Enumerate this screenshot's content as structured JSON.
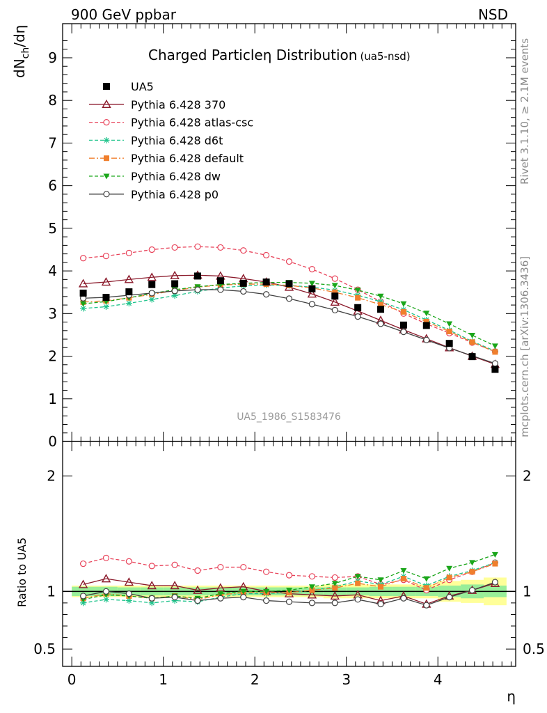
{
  "header": {
    "left": "900 GeV ppbar",
    "right": "NSD",
    "side_top": "Rivet 3.1.10, ≥ 2.1M events",
    "side_bottom": "mcplots.cern.ch [arXiv:1306.3436]"
  },
  "chart_data": [
    {
      "type": "line",
      "title_main": "Charged Particle",
      "title_symbol": "η",
      "title_main2": " Distribution",
      "title_sub": "(ua5-nsd)",
      "ylabel_main": "dN",
      "ylabel_sub": "ch",
      "ylabel_tail": "/dη",
      "watermark": "UA5_1986_S1583476",
      "ylim": [
        0,
        9.8
      ],
      "xlim": [
        -0.1,
        4.85
      ],
      "yticks": [
        "0",
        "1",
        "2",
        "3",
        "4",
        "5",
        "6",
        "7",
        "8",
        "9"
      ],
      "x": [
        0.125,
        0.375,
        0.625,
        0.875,
        1.125,
        1.375,
        1.625,
        1.875,
        2.125,
        2.375,
        2.625,
        2.875,
        3.125,
        3.375,
        3.625,
        3.875,
        4.125,
        4.375,
        4.625
      ],
      "data": {
        "name": "UA5",
        "color": "#000000",
        "values": [
          3.48,
          3.38,
          3.51,
          3.68,
          3.7,
          3.88,
          3.77,
          3.71,
          3.74,
          3.7,
          3.58,
          3.41,
          3.14,
          3.1,
          2.73,
          2.72,
          2.3,
          1.99,
          1.69
        ]
      },
      "series": [
        {
          "name": "Pythia 6.428 370",
          "color": "#8b1a2b",
          "dash": "solid",
          "marker": "open-triangle",
          "values": [
            3.7,
            3.74,
            3.8,
            3.85,
            3.89,
            3.9,
            3.88,
            3.82,
            3.74,
            3.62,
            3.46,
            3.27,
            3.06,
            2.84,
            2.62,
            2.41,
            2.2,
            2.0,
            1.81
          ]
        },
        {
          "name": "Pythia 6.428 atlas-csc",
          "color": "#e8435a",
          "dash": "dashed",
          "marker": "open-circle",
          "values": [
            4.3,
            4.35,
            4.42,
            4.5,
            4.55,
            4.57,
            4.55,
            4.48,
            4.37,
            4.22,
            4.04,
            3.82,
            3.56,
            3.28,
            3.0,
            2.76,
            2.54,
            2.32,
            2.11
          ]
        },
        {
          "name": "Pythia 6.428 d6t",
          "color": "#20c48c",
          "dash": "dashed",
          "marker": "star",
          "values": [
            3.12,
            3.16,
            3.24,
            3.33,
            3.42,
            3.52,
            3.6,
            3.65,
            3.67,
            3.66,
            3.62,
            3.55,
            3.43,
            3.28,
            3.09,
            2.85,
            2.61,
            2.35,
            2.12
          ]
        },
        {
          "name": "Pythia 6.428 default",
          "color": "#f07f2d",
          "dash": "dashdot",
          "marker": "filled-square",
          "values": [
            3.27,
            3.3,
            3.37,
            3.45,
            3.54,
            3.62,
            3.67,
            3.69,
            3.69,
            3.66,
            3.6,
            3.5,
            3.37,
            3.21,
            3.04,
            2.81,
            2.58,
            2.33,
            2.1
          ]
        },
        {
          "name": "Pythia 6.428 dw",
          "color": "#1aa61a",
          "dash": "dashed",
          "marker": "filled-triangle-down",
          "values": [
            3.23,
            3.28,
            3.37,
            3.47,
            3.56,
            3.63,
            3.68,
            3.71,
            3.73,
            3.73,
            3.71,
            3.66,
            3.55,
            3.41,
            3.23,
            3.01,
            2.76,
            2.49,
            2.24
          ]
        },
        {
          "name": "Pythia 6.428 p0",
          "color": "#404040",
          "dash": "solid",
          "marker": "open-circle",
          "values": [
            3.36,
            3.38,
            3.43,
            3.48,
            3.53,
            3.56,
            3.56,
            3.52,
            3.45,
            3.35,
            3.22,
            3.08,
            2.93,
            2.76,
            2.57,
            2.38,
            2.19,
            2.01,
            1.83
          ]
        }
      ]
    },
    {
      "type": "line",
      "ylabel": "Ratio to UA5",
      "xlabel": "η",
      "ylim": [
        0.35,
        2.3
      ],
      "xlim": [
        -0.1,
        4.85
      ],
      "xticks": [
        "0",
        "1",
        "2",
        "3",
        "4"
      ],
      "yticks": [
        "0.5",
        "1",
        "2"
      ],
      "band_inner": [
        0.04,
        0.04,
        0.035,
        0.035,
        0.035,
        0.035,
        0.035,
        0.035,
        0.035,
        0.035,
        0.035,
        0.035,
        0.035,
        0.04,
        0.04,
        0.04,
        0.05,
        0.06,
        0.05
      ],
      "band_outer": [
        0.05,
        0.05,
        0.05,
        0.05,
        0.05,
        0.05,
        0.05,
        0.05,
        0.05,
        0.05,
        0.05,
        0.06,
        0.06,
        0.06,
        0.06,
        0.06,
        0.09,
        0.1,
        0.12
      ],
      "series": [
        {
          "name": "Pythia 6.428 370",
          "values": [
            1.06,
            1.11,
            1.08,
            1.05,
            1.05,
            1.01,
            1.03,
            1.04,
            1.0,
            0.98,
            0.97,
            0.96,
            0.97,
            0.92,
            0.96,
            0.89,
            0.96,
            1.01,
            1.07
          ]
        },
        {
          "name": "Pythia 6.428 atlas-csc",
          "values": [
            1.24,
            1.29,
            1.26,
            1.22,
            1.23,
            1.18,
            1.21,
            1.21,
            1.17,
            1.14,
            1.13,
            1.12,
            1.13,
            1.06,
            1.1,
            1.01,
            1.1,
            1.17,
            1.25
          ]
        },
        {
          "name": "Pythia 6.428 d6t",
          "values": [
            0.9,
            0.93,
            0.92,
            0.9,
            0.92,
            0.91,
            0.95,
            0.98,
            0.98,
            0.99,
            1.01,
            1.04,
            1.09,
            1.06,
            1.13,
            1.05,
            1.13,
            1.18,
            1.25
          ]
        },
        {
          "name": "Pythia 6.428 default",
          "values": [
            0.94,
            0.98,
            0.96,
            0.94,
            0.96,
            0.93,
            0.97,
            0.99,
            0.99,
            0.99,
            1.01,
            1.03,
            1.07,
            1.04,
            1.11,
            1.03,
            1.12,
            1.17,
            1.24
          ]
        },
        {
          "name": "Pythia 6.428 dw",
          "values": [
            0.93,
            0.97,
            0.96,
            0.94,
            0.96,
            0.94,
            0.98,
            1.0,
            1.0,
            1.01,
            1.04,
            1.07,
            1.13,
            1.1,
            1.18,
            1.11,
            1.2,
            1.25,
            1.32
          ]
        },
        {
          "name": "Pythia 6.428 p0",
          "values": [
            0.96,
            1.0,
            0.98,
            0.94,
            0.95,
            0.92,
            0.94,
            0.95,
            0.92,
            0.91,
            0.9,
            0.9,
            0.93,
            0.89,
            0.94,
            0.88,
            0.95,
            1.01,
            1.08
          ]
        }
      ]
    }
  ]
}
